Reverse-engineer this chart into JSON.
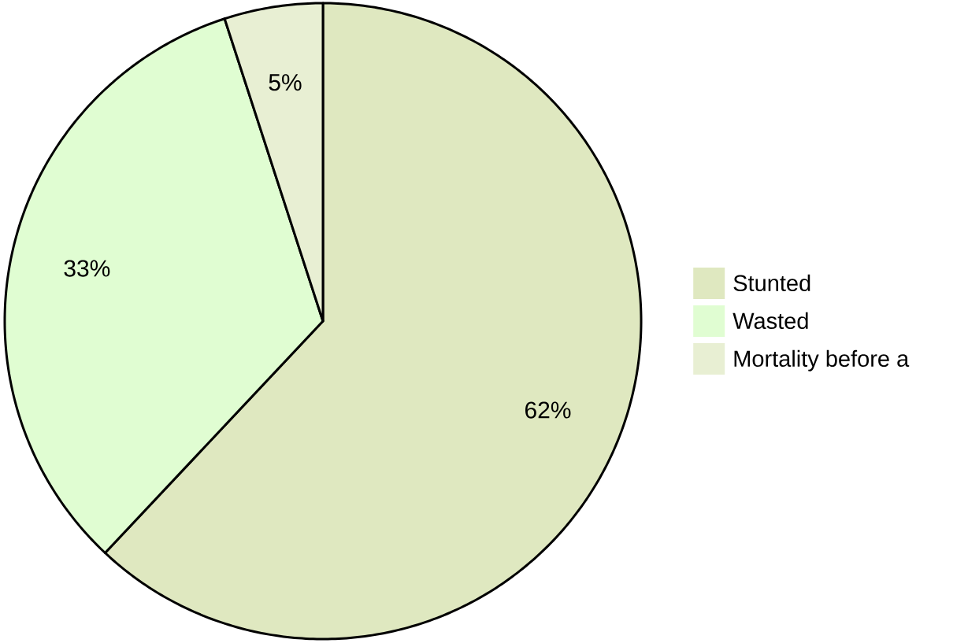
{
  "chart_data": {
    "type": "pie",
    "categories": [
      "Stunted",
      "Wasted",
      "Mortality before a"
    ],
    "values": [
      62,
      33,
      5
    ],
    "colors": [
      "#dfe8c0",
      "#e0fdd2",
      "#e8efd3"
    ],
    "value_labels": [
      "62%",
      "33%",
      "5%"
    ],
    "legend": "right"
  }
}
